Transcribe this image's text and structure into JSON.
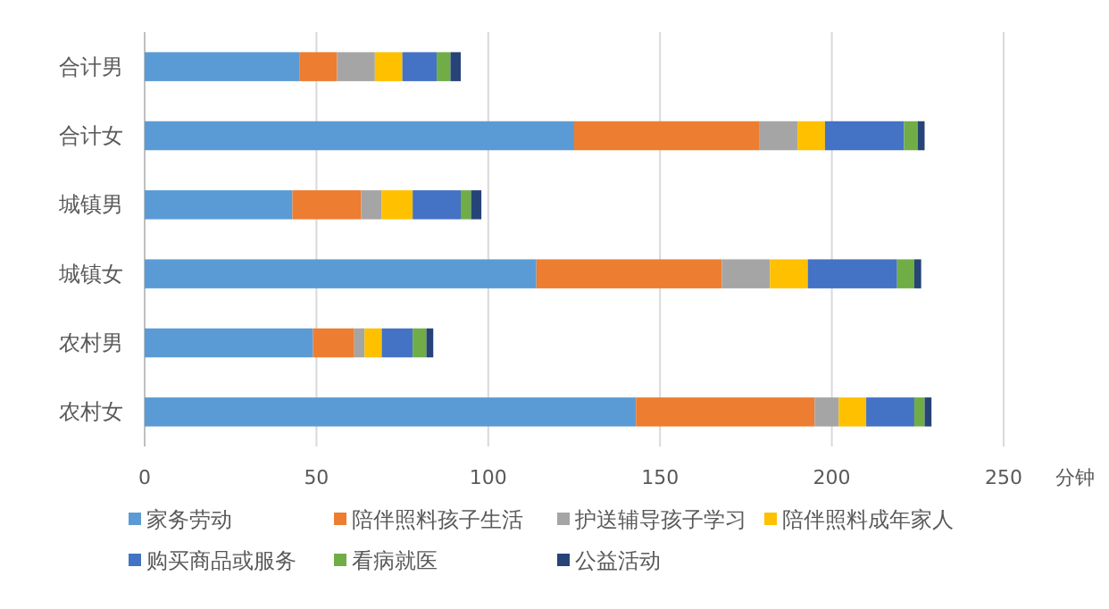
{
  "chart_data": {
    "type": "bar",
    "orientation": "horizontal",
    "stacked": true,
    "xlabel": "分钟",
    "categories": [
      "合计男",
      "合计女",
      "城镇男",
      "城镇女",
      "农村男",
      "农村女"
    ],
    "series": [
      {
        "name": "家务劳动",
        "color": "#5b9bd5",
        "values": [
          45,
          125,
          43,
          114,
          49,
          143
        ]
      },
      {
        "name": "陪伴照料孩子生活",
        "color": "#ed7d31",
        "values": [
          11,
          54,
          20,
          54,
          12,
          52
        ]
      },
      {
        "name": "护送辅导孩子学习",
        "color": "#a5a5a5",
        "values": [
          11,
          11,
          6,
          14,
          3,
          7
        ]
      },
      {
        "name": "陪伴照料成年家人",
        "color": "#ffc000",
        "values": [
          8,
          8,
          9,
          11,
          5,
          8
        ]
      },
      {
        "name": "购买商品或服务",
        "color": "#4472c4",
        "values": [
          10,
          23,
          14,
          26,
          9,
          14
        ]
      },
      {
        "name": "看病就医",
        "color": "#70ad47",
        "values": [
          4,
          4,
          3,
          5,
          4,
          3
        ]
      },
      {
        "name": "公益活动",
        "color": "#264478",
        "values": [
          3,
          2,
          3,
          2,
          2,
          2
        ]
      }
    ],
    "xlim": [
      0,
      250
    ],
    "xticks": [
      0,
      50,
      100,
      150,
      200,
      250
    ],
    "grid": "x",
    "legend": "bottom"
  }
}
